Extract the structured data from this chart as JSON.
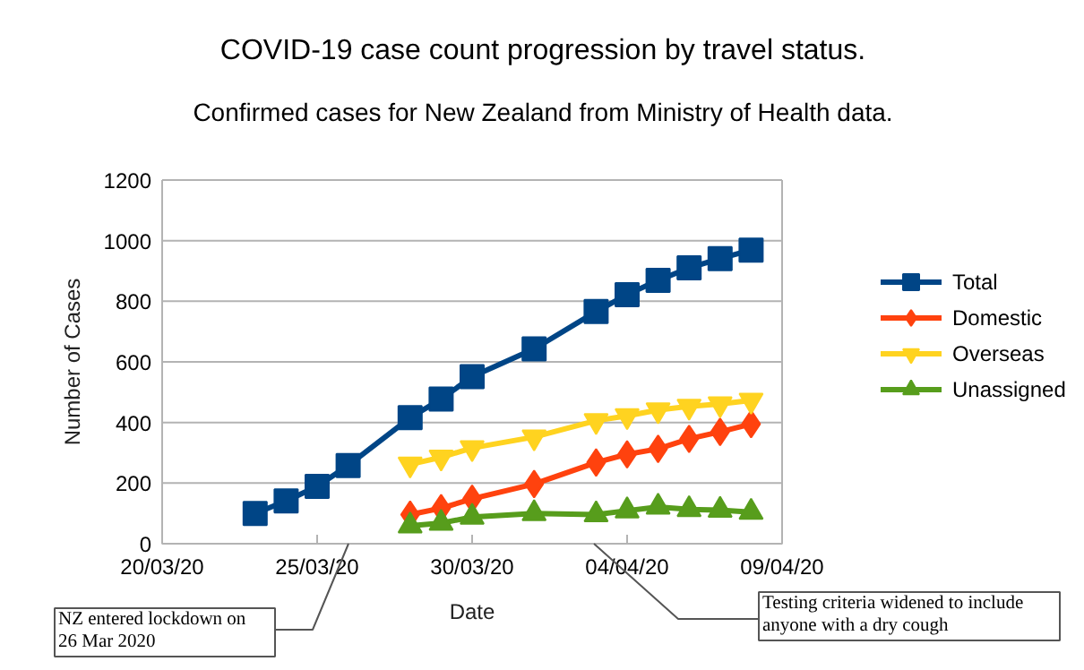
{
  "chart_data": {
    "type": "line",
    "title": "COVID-19 case count progression by travel status.",
    "subtitle": "Confirmed cases for New Zealand from Ministry of Health data.",
    "xlabel": "Date",
    "ylabel": "Number of Cases",
    "xlim": [
      "2020-03-20",
      "2020-04-09"
    ],
    "xticks": [
      {
        "value": "2020-03-20",
        "label": "20/03/20"
      },
      {
        "value": "2020-03-25",
        "label": "25/03/20"
      },
      {
        "value": "2020-03-30",
        "label": "30/03/20"
      },
      {
        "value": "2020-04-04",
        "label": "04/04/20"
      },
      {
        "value": "2020-04-09",
        "label": "09/04/20"
      }
    ],
    "ylim": [
      0,
      1200
    ],
    "yticks": [
      0,
      200,
      400,
      600,
      800,
      1000,
      1200
    ],
    "grid": "y",
    "legend": "right",
    "line_style": "solid",
    "series": [
      {
        "name": "Total",
        "color": "#004586",
        "marker": "square",
        "x": [
          "2020-03-23",
          "2020-03-24",
          "2020-03-25",
          "2020-03-26",
          "2020-03-28",
          "2020-03-29",
          "2020-03-30",
          "2020-04-01",
          "2020-04-03",
          "2020-04-04",
          "2020-04-05",
          "2020-04-06",
          "2020-04-07",
          "2020-04-08"
        ],
        "values": [
          100,
          141,
          189,
          258,
          416,
          477,
          551,
          643,
          766,
          822,
          869,
          910,
          941,
          969
        ]
      },
      {
        "name": "Domestic",
        "color": "#ff420e",
        "marker": "diamond",
        "x": [
          "2020-03-28",
          "2020-03-29",
          "2020-03-30",
          "2020-04-01",
          "2020-04-03",
          "2020-04-04",
          "2020-04-05",
          "2020-04-06",
          "2020-04-07",
          "2020-04-08"
        ],
        "values": [
          96,
          117,
          148,
          197,
          268,
          295,
          313,
          346,
          369,
          395
        ]
      },
      {
        "name": "Overseas",
        "color": "#ffd320",
        "marker": "triangle_down",
        "x": [
          "2020-03-28",
          "2020-03-29",
          "2020-03-30",
          "2020-04-01",
          "2020-04-03",
          "2020-04-04",
          "2020-04-05",
          "2020-04-06",
          "2020-04-07",
          "2020-04-08"
        ],
        "values": [
          262,
          285,
          316,
          352,
          406,
          422,
          441,
          453,
          461,
          473
        ]
      },
      {
        "name": "Unassigned",
        "color": "#579d1c",
        "marker": "triangle",
        "x": [
          "2020-03-28",
          "2020-03-29",
          "2020-03-30",
          "2020-04-01",
          "2020-04-03",
          "2020-04-04",
          "2020-04-05",
          "2020-04-06",
          "2020-04-07",
          "2020-04-08"
        ],
        "values": [
          59,
          68,
          88,
          100,
          96,
          109,
          121,
          113,
          111,
          104
        ]
      }
    ],
    "annotations": [
      "NZ entered lockdown on\n26 Mar 2020",
      "Testing criteria widened to include\nanyone with a dry cough"
    ]
  }
}
